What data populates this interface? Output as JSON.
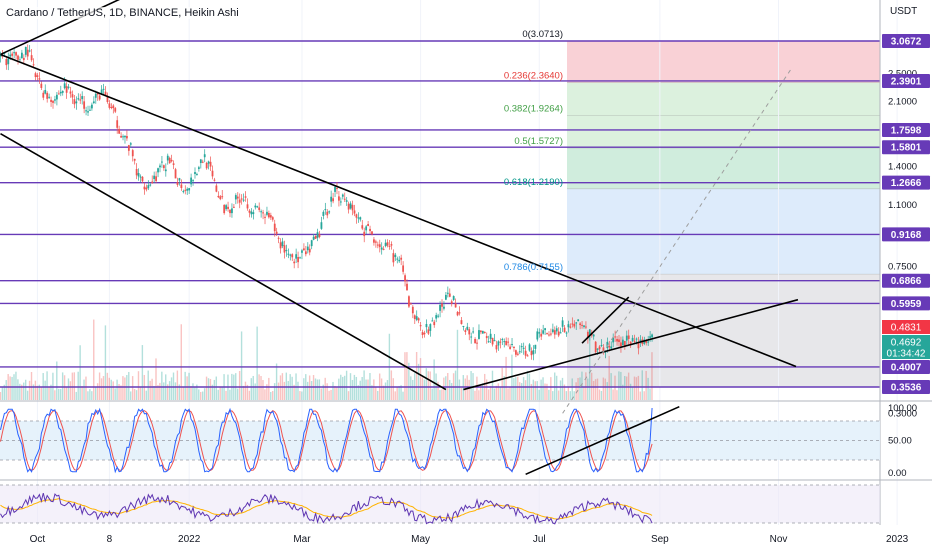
{
  "header": {
    "title": "Cardano / TetherUS, 1D, BINANCE, Heikin Ashi"
  },
  "axis": {
    "currency": "USDT"
  },
  "colors": {
    "line": "#673ab7",
    "up": "#26a69a",
    "down": "#ef5350",
    "trend": "#000000",
    "fib_red": "#f8c9cf",
    "fib_green": "#d6efd8",
    "fib_teal": "#c8ead7",
    "fib_blue": "#d7e8fa",
    "fib_grey": "#e3e3e6",
    "price_last": "#f23645",
    "price_current": "#26a69a"
  },
  "chart_data": [
    {
      "type": "candlestick",
      "title": "Cardano / TetherUS, 1D, BINANCE, Heikin Ashi",
      "scale": "log",
      "y_ticks": [
        {
          "value": 2.5,
          "text": "2.5000"
        },
        {
          "value": 2.1,
          "text": "2.1000"
        },
        {
          "value": 1.4,
          "text": "1.4000"
        },
        {
          "value": 1.1,
          "text": "1.1000"
        },
        {
          "value": 0.75,
          "text": "0.7500"
        },
        {
          "value": 0.3,
          "text": "0.3000"
        }
      ],
      "x_ticks": [
        {
          "label": "Oct",
          "day": 10
        },
        {
          "label": "8",
          "day": 47
        },
        {
          "label": "2022",
          "day": 88
        },
        {
          "label": "Mar",
          "day": 146
        },
        {
          "label": "May",
          "day": 207
        },
        {
          "label": "Jul",
          "day": 268
        },
        {
          "label": "Sep",
          "day": 330
        },
        {
          "label": "Nov",
          "day": 391
        },
        {
          "label": "2023",
          "day": 452
        }
      ],
      "horizontal_levels": [
        {
          "value": 3.0672,
          "label": "3.0672"
        },
        {
          "value": 2.3901,
          "label": "2.3901"
        },
        {
          "value": 1.7598,
          "label": "1.7598"
        },
        {
          "value": 1.5801,
          "label": "1.5801"
        },
        {
          "value": 1.2666,
          "label": "1.2666"
        },
        {
          "value": 0.9168,
          "label": "0.9168"
        },
        {
          "value": 0.6866,
          "label": "0.6866"
        },
        {
          "value": 0.5959,
          "label": "0.5959"
        },
        {
          "value": 0.4007,
          "label": "0.4007"
        },
        {
          "value": 0.3536,
          "label": "0.3536"
        }
      ],
      "fibonacci": [
        {
          "ratio": "0",
          "price": 3.0713,
          "label": "0(3.0713)"
        },
        {
          "ratio": "0.236",
          "price": 2.364,
          "label": "0.236(2.3640)"
        },
        {
          "ratio": "0.382",
          "price": 1.9264,
          "label": "0.382(1.9264)"
        },
        {
          "ratio": "0.5",
          "price": 1.5727,
          "label": "0.5(1.5727)"
        },
        {
          "ratio": "0.618",
          "price": 1.219,
          "label": "0.618(1.2190)"
        },
        {
          "ratio": "0.786",
          "price": 0.7155,
          "label": "0.786(0.7155)"
        }
      ],
      "price_labels": {
        "last": {
          "value": 0.4831,
          "text": "0.4831"
        },
        "current": {
          "value": 0.4692,
          "text": "0.4692",
          "countdown": "01:34:42"
        }
      },
      "price_path": [
        {
          "day": 0,
          "close": 2.75
        },
        {
          "day": 5,
          "close": 2.9
        },
        {
          "day": 9,
          "close": 2.45
        },
        {
          "day": 14,
          "close": 2.2
        },
        {
          "day": 19,
          "close": 2.15
        },
        {
          "day": 24,
          "close": 2.3
        },
        {
          "day": 29,
          "close": 2.15
        },
        {
          "day": 33,
          "close": 2.1
        },
        {
          "day": 38,
          "close": 2.05
        },
        {
          "day": 43,
          "close": 2.25
        },
        {
          "day": 48,
          "close": 2.0
        },
        {
          "day": 53,
          "close": 1.75
        },
        {
          "day": 58,
          "close": 1.55
        },
        {
          "day": 62,
          "close": 1.3
        },
        {
          "day": 67,
          "close": 1.25
        },
        {
          "day": 72,
          "close": 1.35
        },
        {
          "day": 77,
          "close": 1.45
        },
        {
          "day": 82,
          "close": 1.3
        },
        {
          "day": 86,
          "close": 1.22
        },
        {
          "day": 91,
          "close": 1.35
        },
        {
          "day": 96,
          "close": 1.5
        },
        {
          "day": 101,
          "close": 1.25
        },
        {
          "day": 106,
          "close": 1.08
        },
        {
          "day": 110,
          "close": 1.1
        },
        {
          "day": 115,
          "close": 1.18
        },
        {
          "day": 120,
          "close": 1.08
        },
        {
          "day": 125,
          "close": 1.05
        },
        {
          "day": 130,
          "close": 1.0
        },
        {
          "day": 134,
          "close": 0.88
        },
        {
          "day": 139,
          "close": 0.82
        },
        {
          "day": 144,
          "close": 0.78
        },
        {
          "day": 149,
          "close": 0.82
        },
        {
          "day": 154,
          "close": 0.9
        },
        {
          "day": 158,
          "close": 1.05
        },
        {
          "day": 163,
          "close": 1.2
        },
        {
          "day": 168,
          "close": 1.15
        },
        {
          "day": 173,
          "close": 1.05
        },
        {
          "day": 178,
          "close": 0.95
        },
        {
          "day": 182,
          "close": 0.92
        },
        {
          "day": 187,
          "close": 0.85
        },
        {
          "day": 192,
          "close": 0.82
        },
        {
          "day": 197,
          "close": 0.75
        },
        {
          "day": 201,
          "close": 0.6
        },
        {
          "day": 206,
          "close": 0.52
        },
        {
          "day": 211,
          "close": 0.5
        },
        {
          "day": 216,
          "close": 0.56
        },
        {
          "day": 221,
          "close": 0.62
        },
        {
          "day": 225,
          "close": 0.6
        },
        {
          "day": 230,
          "close": 0.5
        },
        {
          "day": 235,
          "close": 0.48
        },
        {
          "day": 240,
          "close": 0.49
        },
        {
          "day": 245,
          "close": 0.47
        },
        {
          "day": 249,
          "close": 0.46
        },
        {
          "day": 254,
          "close": 0.45
        },
        {
          "day": 259,
          "close": 0.44
        },
        {
          "day": 264,
          "close": 0.45
        },
        {
          "day": 269,
          "close": 0.5
        },
        {
          "day": 273,
          "close": 0.5
        },
        {
          "day": 278,
          "close": 0.51
        },
        {
          "day": 283,
          "close": 0.52
        },
        {
          "day": 288,
          "close": 0.53
        },
        {
          "day": 293,
          "close": 0.5
        },
        {
          "day": 297,
          "close": 0.46
        },
        {
          "day": 302,
          "close": 0.45
        },
        {
          "day": 307,
          "close": 0.47
        }
      ],
      "trendlines": [
        {
          "from": {
            "day": -9,
            "price": 2.82
          },
          "to": {
            "day": 400,
            "price": 0.402
          }
        },
        {
          "from": {
            "day": -9,
            "price": 1.72
          },
          "to": {
            "day": 220,
            "price": 0.348
          }
        },
        {
          "from": {
            "day": -9,
            "price": 2.82
          },
          "to": {
            "day": 113,
            "price": 5.6
          }
        },
        {
          "from": {
            "day": 229,
            "price": 0.348
          },
          "to": {
            "day": 401,
            "price": 0.61
          }
        },
        {
          "from": {
            "day": 290,
            "price": 0.465
          },
          "to": {
            "day": 314,
            "price": 0.62
          }
        }
      ],
      "projection": {
        "from": {
          "day": 280,
          "price": 0.3
        },
        "to": {
          "day": 398,
          "price": 2.6
        }
      }
    },
    {
      "type": "line",
      "name": "stochastic",
      "y_ticks": [
        {
          "value": 100,
          "text": "100.00"
        },
        {
          "value": 50,
          "text": "50.00"
        },
        {
          "value": 0,
          "text": "0.00"
        }
      ],
      "band": [
        20,
        80
      ],
      "trendline": {
        "from": {
          "day": 261,
          "value": -2
        },
        "to": {
          "day": 340,
          "value": 102
        }
      }
    },
    {
      "type": "line",
      "name": "rsi"
    }
  ]
}
